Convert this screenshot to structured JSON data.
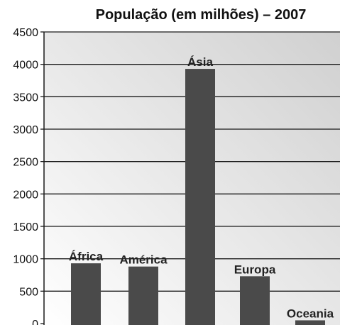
{
  "chart_data": {
    "type": "bar",
    "title": "População (em milhões) – 2007",
    "xlabel": "",
    "ylabel": "",
    "categories": [
      "África",
      "América",
      "Ásia",
      "Europa",
      "Oceania"
    ],
    "values": [
      930,
      880,
      3930,
      730,
      50
    ],
    "ylim": [
      0,
      4500
    ],
    "yticks": [
      0,
      500,
      1000,
      1500,
      2000,
      2500,
      3000,
      3500,
      4000,
      4500
    ],
    "grid": true,
    "legend": "none",
    "colors": {
      "bar": "#4a4a4a",
      "grid": "#1a1a1a",
      "plot_bg_light": "#ffffff",
      "plot_bg_dark": "#d0d0d0"
    }
  }
}
